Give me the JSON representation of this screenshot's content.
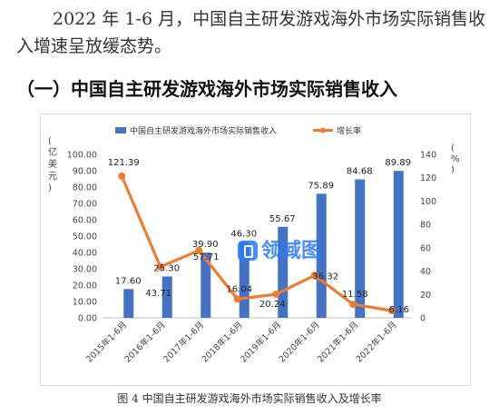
{
  "paragraph": "2022 年 1-6 月，中国自主研发游戏海外市场实际销售收入增速呈放缓态势。",
  "heading": "（一）中国自主研发游戏海外市场实际销售收入",
  "caption": "图 4 中国自主研发游戏海外市场实际销售收入及增长率",
  "watermark": "领域图",
  "colors": {
    "bar": "#4472C4",
    "line": "#ED7D31"
  },
  "chart_data": {
    "type": "bar+line",
    "categories": [
      "2015年1-6月",
      "2016年1-6月",
      "2017年1-6月",
      "2018年1-6月",
      "2019年1-6月",
      "2020年1-6月",
      "2021年1-6月",
      "2022年1-6月"
    ],
    "series": [
      {
        "name": "中国自主研发游戏海外市场实际销售收入",
        "type": "bar",
        "axis": "left",
        "values": [
          17.6,
          25.3,
          39.9,
          46.3,
          55.67,
          75.89,
          84.68,
          89.89
        ]
      },
      {
        "name": "增长率",
        "type": "line",
        "axis": "right",
        "values": [
          121.39,
          43.71,
          57.71,
          16.04,
          20.24,
          36.32,
          11.58,
          6.16
        ]
      }
    ],
    "bar_labels": [
      "17.60",
      "25.30",
      "39.90",
      "46.30",
      "55.67",
      "75.89",
      "84.68",
      "89.89"
    ],
    "line_labels": [
      "121.39",
      "43.71",
      "57.71",
      "16.04",
      "20.24",
      "36.32",
      "11.58",
      "6.16"
    ],
    "ylabel_left": "亿美元",
    "ylabel_right": "%",
    "ylim_left": [
      0,
      100
    ],
    "ylim_right": [
      0,
      140
    ],
    "yticks_left": [
      "0.00",
      "10.00",
      "20.00",
      "30.00",
      "40.00",
      "50.00",
      "60.00",
      "70.00",
      "80.00",
      "90.00",
      "100.00"
    ],
    "yticks_right": [
      "0",
      "20",
      "40",
      "60",
      "80",
      "100",
      "120",
      "140"
    ],
    "legend_position": "top"
  }
}
